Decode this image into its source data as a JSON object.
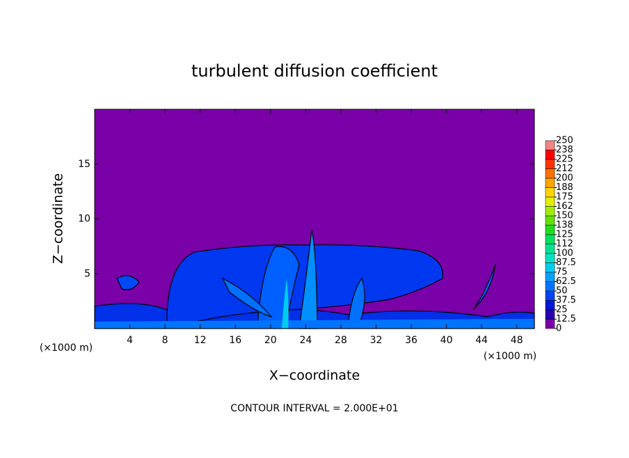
{
  "chart_data": {
    "type": "contour",
    "title": "turbulent diffusion coefficient",
    "x_label": "X−coordinate",
    "y_label": "Z−coordinate",
    "x_unit_label": "(×1000 m)",
    "y_unit_label": "(×1000 m)",
    "footer": "CONTOUR INTERVAL = 2.000E+01",
    "xlim": [
      0,
      50
    ],
    "xticks": [
      4,
      8,
      12,
      16,
      20,
      24,
      28,
      32,
      36,
      40,
      44,
      48
    ],
    "ylim": [
      0,
      20
    ],
    "yticks": [
      5,
      10,
      15
    ],
    "colorbar": {
      "ticks": [
        0,
        12.5,
        25,
        37.5,
        50,
        62.5,
        75,
        87.5,
        100,
        {
          "value": 112.5,
          "label": "112"
        },
        125,
        {
          "value": 137.5,
          "label": "138"
        },
        150,
        {
          "value": 162.5,
          "label": "162"
        },
        175,
        {
          "value": 187.5,
          "label": "188"
        },
        200,
        {
          "value": 212.5,
          "label": "212"
        },
        225,
        {
          "value": 237.5,
          "label": "238"
        },
        250
      ],
      "colors": [
        "#7a00a8",
        "#2800b0",
        "#0018d8",
        "#0044f4",
        "#0074ff",
        "#00a4ff",
        "#00ccf0",
        "#00e4c4",
        "#00e494",
        "#00e060",
        "#20dc20",
        "#64e000",
        "#a4ec00",
        "#e4f000",
        "#ffd400",
        "#ffa400",
        "#ff7000",
        "#ff3400",
        "#ff0000",
        "#f08484"
      ]
    }
  }
}
